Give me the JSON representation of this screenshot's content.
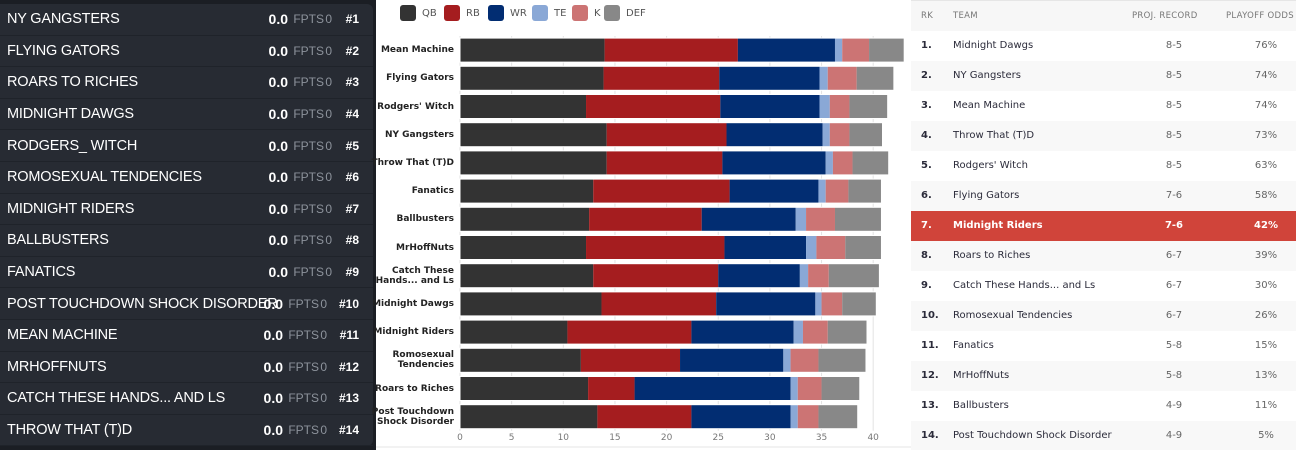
{
  "left_panel": {
    "fpts_label": "FPTS",
    "teams": [
      {
        "name": "NY GANGSTERS",
        "score": "0.0",
        "fpts": "0",
        "rank": "#1"
      },
      {
        "name": "FLYING GATORS",
        "score": "0.0",
        "fpts": "0",
        "rank": "#2"
      },
      {
        "name": "ROARS TO RICHES",
        "score": "0.0",
        "fpts": "0",
        "rank": "#3"
      },
      {
        "name": "MIDNIGHT DAWGS",
        "score": "0.0",
        "fpts": "0",
        "rank": "#4"
      },
      {
        "name": "RODGERS_ WITCH",
        "score": "0.0",
        "fpts": "0",
        "rank": "#5"
      },
      {
        "name": "ROMOSEXUAL TENDENCIES",
        "score": "0.0",
        "fpts": "0",
        "rank": "#6"
      },
      {
        "name": "MIDNIGHT RIDERS",
        "score": "0.0",
        "fpts": "0",
        "rank": "#7"
      },
      {
        "name": "BALLBUSTERS",
        "score": "0.0",
        "fpts": "0",
        "rank": "#8"
      },
      {
        "name": "FANATICS",
        "score": "0.0",
        "fpts": "0",
        "rank": "#9"
      },
      {
        "name": "POST TOUCHDOWN SHOCK DISORDER",
        "score": "0.0",
        "fpts": "0",
        "rank": "#10"
      },
      {
        "name": "MEAN MACHINE",
        "score": "0.0",
        "fpts": "0",
        "rank": "#11"
      },
      {
        "name": "MRHOFFNUTS",
        "score": "0.0",
        "fpts": "0",
        "rank": "#12"
      },
      {
        "name": "CATCH THESE HANDS... AND LS",
        "score": "0.0",
        "fpts": "0",
        "rank": "#13"
      },
      {
        "name": "THROW THAT (T)D",
        "score": "0.0",
        "fpts": "0",
        "rank": "#14"
      }
    ]
  },
  "chart_data": {
    "type": "bar",
    "orientation": "horizontal",
    "stacked": true,
    "title": "",
    "xlabel": "",
    "ylabel": "",
    "xlim": [
      0,
      40
    ],
    "x_ticks": [
      "0",
      "5",
      "10",
      "15",
      "20",
      "25",
      "30",
      "35",
      "40"
    ],
    "grid": true,
    "legend_position": "top-left",
    "categories": [
      [
        "Mean Machine"
      ],
      [
        "Flying Gators"
      ],
      [
        "Rodgers' Witch"
      ],
      [
        "NY Gangsters"
      ],
      [
        "Throw That (T)D"
      ],
      [
        "Fanatics"
      ],
      [
        "Ballbusters"
      ],
      [
        "MrHoffNuts"
      ],
      [
        "Catch These",
        "Hands... and Ls"
      ],
      [
        "Midnight Dawgs"
      ],
      [
        "Midnight Riders"
      ],
      [
        "Romosexual",
        "Tendencies"
      ],
      [
        "Roars to Riches"
      ],
      [
        "Post Touchdown",
        "Shock Disorder"
      ]
    ],
    "series": [
      {
        "name": "QB",
        "color": "#333333",
        "values": [
          14.0,
          13.9,
          12.2,
          14.2,
          14.2,
          12.9,
          12.5,
          12.2,
          12.9,
          13.7,
          10.4,
          11.7,
          12.4,
          13.3
        ]
      },
      {
        "name": "RB",
        "color": "#a51d1f",
        "values": [
          12.9,
          11.2,
          13.0,
          11.6,
          11.2,
          13.2,
          10.9,
          13.4,
          12.1,
          11.1,
          12.0,
          9.6,
          4.5,
          9.1
        ]
      },
      {
        "name": "WR",
        "color": "#022d72",
        "values": [
          9.4,
          9.7,
          9.6,
          9.3,
          10.0,
          8.6,
          9.1,
          7.9,
          7.9,
          9.6,
          9.9,
          10.0,
          15.1,
          9.6
        ]
      },
      {
        "name": "TE",
        "color": "#8aa8d6",
        "values": [
          0.7,
          0.8,
          1.0,
          0.7,
          0.7,
          0.7,
          1.0,
          1.0,
          0.8,
          0.6,
          0.9,
          0.7,
          0.7,
          0.7
        ]
      },
      {
        "name": "K",
        "color": "#cc7474",
        "values": [
          2.6,
          2.8,
          1.9,
          1.9,
          1.9,
          2.2,
          2.8,
          2.8,
          2.0,
          2.0,
          2.4,
          2.7,
          2.3,
          2.0
        ]
      },
      {
        "name": "DEF",
        "color": "#888888",
        "values": [
          3.4,
          3.6,
          3.7,
          3.2,
          3.5,
          3.2,
          4.5,
          3.5,
          4.9,
          3.3,
          3.8,
          4.6,
          3.7,
          3.8
        ]
      }
    ]
  },
  "table": {
    "headers": {
      "rank": "RK",
      "team": "TEAM",
      "record": "PROJ. RECORD",
      "odds": "PLAYOFF ODDS"
    },
    "highlight_color": "#d0443a",
    "rows": [
      {
        "rank": "1.",
        "team": "Midnight Dawgs",
        "record": "8-5",
        "odds": "76%"
      },
      {
        "rank": "2.",
        "team": "NY Gangsters",
        "record": "8-5",
        "odds": "74%"
      },
      {
        "rank": "3.",
        "team": "Mean Machine",
        "record": "8-5",
        "odds": "74%"
      },
      {
        "rank": "4.",
        "team": "Throw That (T)D",
        "record": "8-5",
        "odds": "73%"
      },
      {
        "rank": "5.",
        "team": "Rodgers' Witch",
        "record": "8-5",
        "odds": "63%"
      },
      {
        "rank": "6.",
        "team": "Flying Gators",
        "record": "7-6",
        "odds": "58%"
      },
      {
        "rank": "7.",
        "team": "Midnight Riders",
        "record": "7-6",
        "odds": "42%",
        "highlighted": true
      },
      {
        "rank": "8.",
        "team": "Roars to Riches",
        "record": "6-7",
        "odds": "39%"
      },
      {
        "rank": "9.",
        "team": "Catch These Hands... and Ls",
        "record": "6-7",
        "odds": "30%"
      },
      {
        "rank": "10.",
        "team": "Romosexual Tendencies",
        "record": "6-7",
        "odds": "26%"
      },
      {
        "rank": "11.",
        "team": "Fanatics",
        "record": "5-8",
        "odds": "15%"
      },
      {
        "rank": "12.",
        "team": "MrHoffNuts",
        "record": "5-8",
        "odds": "13%"
      },
      {
        "rank": "13.",
        "team": "Ballbusters",
        "record": "4-9",
        "odds": "11%"
      },
      {
        "rank": "14.",
        "team": "Post Touchdown Shock Disorder",
        "record": "4-9",
        "odds": "5%"
      }
    ]
  }
}
